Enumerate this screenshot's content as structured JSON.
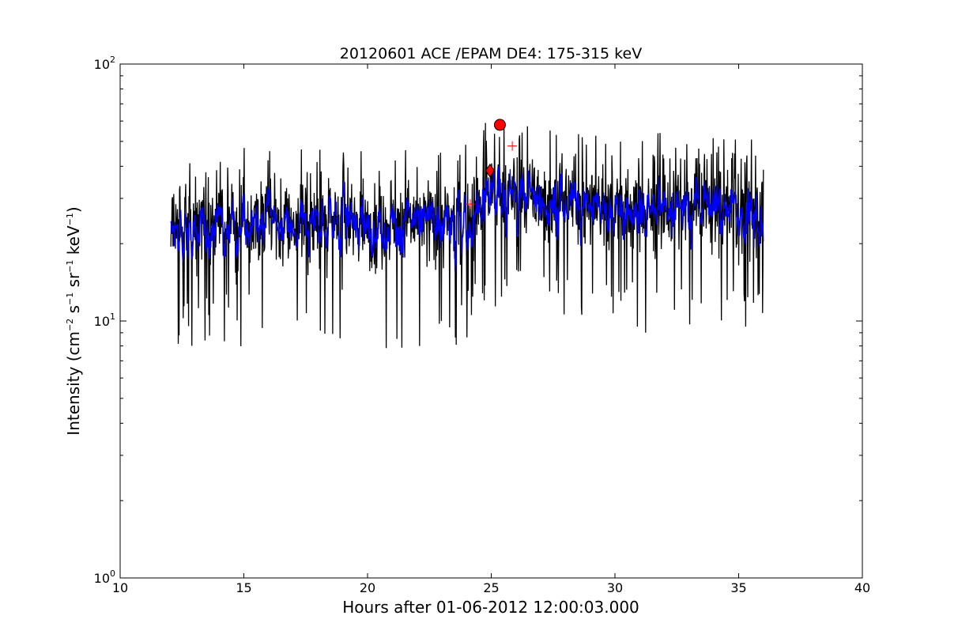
{
  "chart_data": {
    "type": "line",
    "title": "20120601 ACE /EPAM DE4: 175-315 keV",
    "xlabel": "Hours after 01-06-2012 12:00:03.000",
    "ylabel": "Intensity (cm⁻² s⁻¹ sr⁻¹ keV⁻¹)",
    "ylabel_parts": {
      "prefix": "Intensity (cm",
      "exp1": "−2",
      "unit2": " s",
      "exp2": "−1",
      "unit3": " sr",
      "exp3": "−1",
      "unit4": " keV",
      "exp4": "−1",
      "suffix": ")"
    },
    "xlim": [
      10,
      40
    ],
    "ylim": [
      1,
      100
    ],
    "yscale": "log",
    "x_ticks": [
      "10",
      "15",
      "20",
      "25",
      "30",
      "35",
      "40"
    ],
    "y_ticks": [
      {
        "base": "10",
        "exp": "0"
      },
      {
        "base": "10",
        "exp": "1"
      },
      {
        "base": "10",
        "exp": "2"
      }
    ],
    "grid": false,
    "legend": "none",
    "series": [
      {
        "color": "#000000",
        "style": "raw",
        "x_start": 12.05,
        "x_end": 36.0,
        "profile": [
          {
            "x": 12.0,
            "y": 25
          },
          {
            "x": 18.0,
            "y": 24
          },
          {
            "x": 20.0,
            "y": 24
          },
          {
            "x": 24.0,
            "y": 25
          },
          {
            "x": 25.0,
            "y": 32
          },
          {
            "x": 26.5,
            "y": 31
          },
          {
            "x": 30.0,
            "y": 28
          },
          {
            "x": 36.0,
            "y": 27
          }
        ]
      },
      {
        "color": "#0000ff",
        "style": "smoothed",
        "x_start": 12.05,
        "x_end": 36.0,
        "profile": [
          {
            "x": 12.0,
            "y": 25
          },
          {
            "x": 18.0,
            "y": 24
          },
          {
            "x": 20.0,
            "y": 24
          },
          {
            "x": 24.0,
            "y": 25
          },
          {
            "x": 25.0,
            "y": 32
          },
          {
            "x": 26.5,
            "y": 31
          },
          {
            "x": 30.0,
            "y": 28
          },
          {
            "x": 36.0,
            "y": 27
          }
        ]
      }
    ],
    "markers": [
      {
        "shape": "circle",
        "x": 25.35,
        "y": 58,
        "color": "#ff0000"
      },
      {
        "shape": "diamond",
        "x": 24.95,
        "y": 38.5,
        "color": "#ff0000"
      },
      {
        "shape": "plus",
        "x": 24.15,
        "y": 28.5,
        "color": "#ff0000"
      },
      {
        "shape": "plus",
        "x": 25.85,
        "y": 48,
        "color": "#ff0000"
      }
    ]
  }
}
